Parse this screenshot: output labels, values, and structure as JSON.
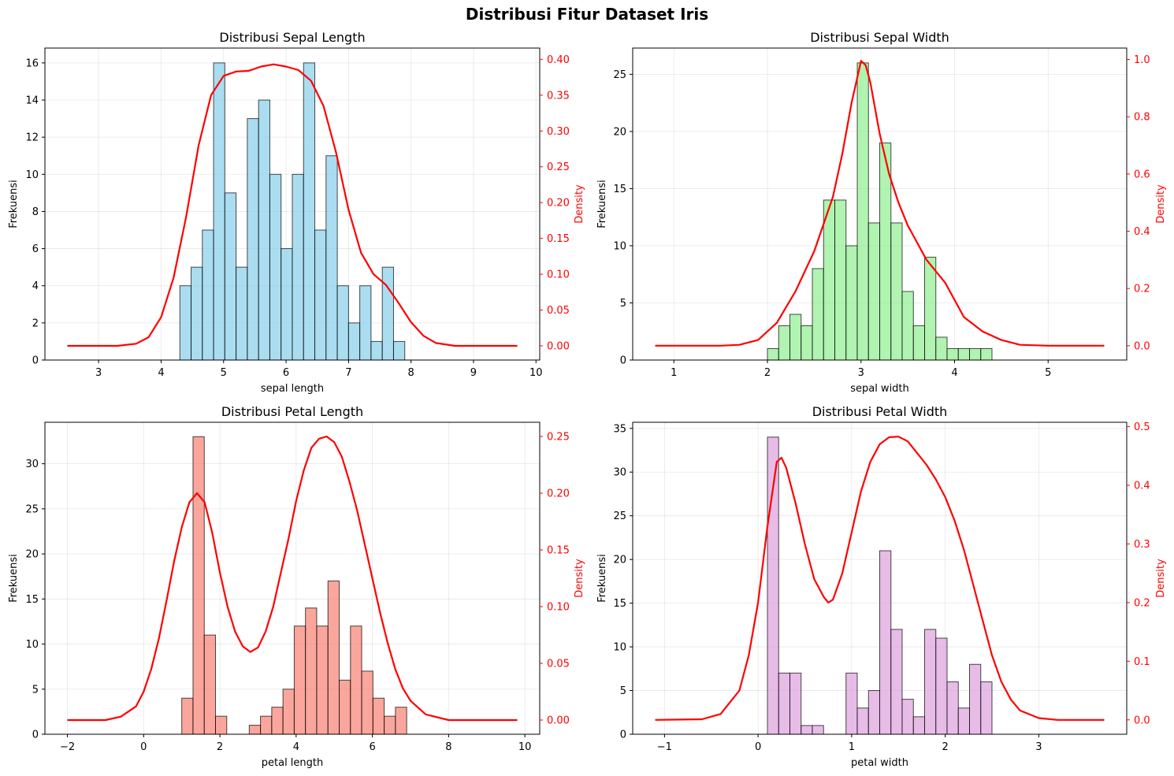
{
  "figure": {
    "title": "Distribusi Fitur Dataset Iris",
    "kde_color": "#ff0000"
  },
  "chart_data": [
    {
      "type": "bar",
      "title": "Distribusi Sepal Length",
      "xlabel": "sepal length",
      "ylabel": "Frekuensi",
      "y2label": "Density",
      "color": "#87ceeb",
      "xlim": [
        2.14,
        10.06
      ],
      "ylim": [
        0,
        16.8
      ],
      "y2lim": [
        -0.0198,
        0.4158
      ],
      "xticks": [
        3,
        4,
        5,
        6,
        7,
        8,
        9,
        10
      ],
      "yticks": [
        0,
        2,
        4,
        6,
        8,
        10,
        12,
        14,
        16
      ],
      "y2ticks": [
        0.0,
        0.05,
        0.1,
        0.15,
        0.2,
        0.25,
        0.3,
        0.35,
        0.4
      ],
      "y2tick_labels": [
        "0.00",
        "0.05",
        "0.10",
        "0.15",
        "0.20",
        "0.25",
        "0.30",
        "0.35",
        "0.40"
      ],
      "bin_start": 4.3,
      "bin_width": 0.18,
      "values": [
        4,
        5,
        7,
        16,
        9,
        5,
        13,
        14,
        10,
        6,
        10,
        16,
        7,
        11,
        4,
        2,
        4,
        1,
        5,
        1
      ],
      "kde": [
        [
          2.5,
          0.0
        ],
        [
          3.3,
          0.0
        ],
        [
          3.6,
          0.003
        ],
        [
          3.8,
          0.012
        ],
        [
          4.0,
          0.04
        ],
        [
          4.2,
          0.095
        ],
        [
          4.4,
          0.18
        ],
        [
          4.6,
          0.28
        ],
        [
          4.8,
          0.35
        ],
        [
          5.0,
          0.377
        ],
        [
          5.2,
          0.383
        ],
        [
          5.4,
          0.384
        ],
        [
          5.6,
          0.39
        ],
        [
          5.8,
          0.393
        ],
        [
          6.0,
          0.39
        ],
        [
          6.2,
          0.385
        ],
        [
          6.4,
          0.37
        ],
        [
          6.6,
          0.335
        ],
        [
          6.8,
          0.27
        ],
        [
          7.0,
          0.19
        ],
        [
          7.2,
          0.13
        ],
        [
          7.4,
          0.1
        ],
        [
          7.6,
          0.085
        ],
        [
          7.8,
          0.06
        ],
        [
          8.0,
          0.033
        ],
        [
          8.2,
          0.014
        ],
        [
          8.4,
          0.004
        ],
        [
          8.7,
          0.0
        ],
        [
          9.7,
          0.0
        ]
      ]
    },
    {
      "type": "bar",
      "title": "Distribusi Sepal Width",
      "xlabel": "sepal width",
      "ylabel": "Frekuensi",
      "y2label": "Density",
      "color": "#90ee90",
      "xlim": [
        0.56,
        5.84
      ],
      "ylim": [
        0,
        27.3
      ],
      "y2lim": [
        -0.05,
        1.04
      ],
      "xticks": [
        1,
        2,
        3,
        4,
        5
      ],
      "yticks": [
        0,
        5,
        10,
        15,
        20,
        25
      ],
      "y2ticks": [
        0.0,
        0.2,
        0.4,
        0.6,
        0.8,
        1.0
      ],
      "y2tick_labels": [
        "0.0",
        "0.2",
        "0.4",
        "0.6",
        "0.8",
        "1.0"
      ],
      "bin_start": 2.0,
      "bin_width": 0.12,
      "values": [
        1,
        3,
        4,
        3,
        8,
        14,
        14,
        10,
        26,
        12,
        19,
        12,
        6,
        3,
        9,
        2,
        1,
        1,
        1,
        1
      ],
      "kde": [
        [
          0.8,
          0.0
        ],
        [
          1.5,
          0.0
        ],
        [
          1.7,
          0.003
        ],
        [
          1.9,
          0.02
        ],
        [
          2.1,
          0.08
        ],
        [
          2.3,
          0.19
        ],
        [
          2.5,
          0.33
        ],
        [
          2.7,
          0.52
        ],
        [
          2.8,
          0.67
        ],
        [
          2.9,
          0.85
        ],
        [
          3.0,
          0.995
        ],
        [
          3.05,
          0.98
        ],
        [
          3.1,
          0.92
        ],
        [
          3.2,
          0.74
        ],
        [
          3.3,
          0.6
        ],
        [
          3.4,
          0.5
        ],
        [
          3.5,
          0.42
        ],
        [
          3.6,
          0.36
        ],
        [
          3.7,
          0.3
        ],
        [
          3.8,
          0.26
        ],
        [
          3.9,
          0.22
        ],
        [
          4.0,
          0.16
        ],
        [
          4.1,
          0.1
        ],
        [
          4.3,
          0.05
        ],
        [
          4.5,
          0.02
        ],
        [
          4.7,
          0.003
        ],
        [
          5.0,
          0.0
        ],
        [
          5.6,
          0.0
        ]
      ]
    },
    {
      "type": "bar",
      "title": "Distribusi Petal Length",
      "xlabel": "petal length",
      "ylabel": "Frekuensi",
      "y2label": "Density",
      "color": "#fa8072",
      "xlim": [
        -2.59,
        10.39
      ],
      "ylim": [
        0,
        34.6
      ],
      "y2lim": [
        -0.0125,
        0.2625
      ],
      "xticks": [
        -2,
        0,
        2,
        4,
        6,
        8,
        10
      ],
      "yticks": [
        0,
        5,
        10,
        15,
        20,
        25,
        30
      ],
      "y2ticks": [
        0.0,
        0.05,
        0.1,
        0.15,
        0.2,
        0.25
      ],
      "y2tick_labels": [
        "0.00",
        "0.05",
        "0.10",
        "0.15",
        "0.20",
        "0.25"
      ],
      "bin_start": 1.0,
      "bin_width": 0.295,
      "values": [
        4,
        33,
        11,
        2,
        0,
        0,
        1,
        2,
        3,
        5,
        12,
        14,
        12,
        17,
        6,
        12,
        7,
        4,
        2,
        3
      ],
      "kde": [
        [
          -2.0,
          0.0
        ],
        [
          -1.0,
          0.0
        ],
        [
          -0.6,
          0.003
        ],
        [
          -0.2,
          0.012
        ],
        [
          0.0,
          0.025
        ],
        [
          0.2,
          0.045
        ],
        [
          0.4,
          0.072
        ],
        [
          0.6,
          0.105
        ],
        [
          0.8,
          0.14
        ],
        [
          1.0,
          0.17
        ],
        [
          1.2,
          0.192
        ],
        [
          1.4,
          0.2
        ],
        [
          1.6,
          0.192
        ],
        [
          1.8,
          0.165
        ],
        [
          2.0,
          0.13
        ],
        [
          2.2,
          0.1
        ],
        [
          2.4,
          0.078
        ],
        [
          2.6,
          0.065
        ],
        [
          2.8,
          0.06
        ],
        [
          3.0,
          0.064
        ],
        [
          3.2,
          0.078
        ],
        [
          3.4,
          0.1
        ],
        [
          3.6,
          0.13
        ],
        [
          3.8,
          0.16
        ],
        [
          4.0,
          0.193
        ],
        [
          4.2,
          0.22
        ],
        [
          4.4,
          0.24
        ],
        [
          4.6,
          0.248
        ],
        [
          4.8,
          0.25
        ],
        [
          5.0,
          0.245
        ],
        [
          5.2,
          0.232
        ],
        [
          5.4,
          0.21
        ],
        [
          5.6,
          0.185
        ],
        [
          5.8,
          0.155
        ],
        [
          6.0,
          0.125
        ],
        [
          6.2,
          0.095
        ],
        [
          6.4,
          0.068
        ],
        [
          6.6,
          0.045
        ],
        [
          6.8,
          0.028
        ],
        [
          7.0,
          0.017
        ],
        [
          7.4,
          0.005
        ],
        [
          8.0,
          0.0
        ],
        [
          9.8,
          0.0
        ]
      ]
    },
    {
      "type": "bar",
      "title": "Distribusi Petal Width",
      "xlabel": "petal width",
      "ylabel": "Frekuensi",
      "y2label": "Density",
      "color": "#dda0dd",
      "xlim": [
        -1.34,
        3.94
      ],
      "ylim": [
        0,
        35.7
      ],
      "y2lim": [
        -0.0245,
        0.5075
      ],
      "xticks": [
        -1,
        0,
        1,
        2,
        3
      ],
      "yticks": [
        0,
        5,
        10,
        15,
        20,
        25,
        30,
        35
      ],
      "y2ticks": [
        0.0,
        0.1,
        0.2,
        0.3,
        0.4,
        0.5
      ],
      "y2tick_labels": [
        "0.0",
        "0.1",
        "0.2",
        "0.3",
        "0.4",
        "0.5"
      ],
      "bin_start": 0.1,
      "bin_width": 0.12,
      "values": [
        34,
        7,
        7,
        1,
        1,
        0,
        0,
        7,
        3,
        5,
        21,
        12,
        4,
        2,
        12,
        11,
        6,
        3,
        8,
        6
      ],
      "kde": [
        [
          -1.1,
          0.0
        ],
        [
          -0.6,
          0.001
        ],
        [
          -0.4,
          0.01
        ],
        [
          -0.2,
          0.05
        ],
        [
          -0.1,
          0.11
        ],
        [
          0.0,
          0.2
        ],
        [
          0.1,
          0.33
        ],
        [
          0.2,
          0.44
        ],
        [
          0.25,
          0.447
        ],
        [
          0.3,
          0.43
        ],
        [
          0.4,
          0.37
        ],
        [
          0.5,
          0.3
        ],
        [
          0.6,
          0.24
        ],
        [
          0.7,
          0.21
        ],
        [
          0.75,
          0.2
        ],
        [
          0.8,
          0.205
        ],
        [
          0.9,
          0.25
        ],
        [
          1.0,
          0.32
        ],
        [
          1.1,
          0.39
        ],
        [
          1.2,
          0.44
        ],
        [
          1.3,
          0.47
        ],
        [
          1.4,
          0.482
        ],
        [
          1.5,
          0.483
        ],
        [
          1.6,
          0.475
        ],
        [
          1.7,
          0.455
        ],
        [
          1.8,
          0.435
        ],
        [
          1.9,
          0.41
        ],
        [
          2.0,
          0.38
        ],
        [
          2.1,
          0.34
        ],
        [
          2.2,
          0.29
        ],
        [
          2.3,
          0.23
        ],
        [
          2.4,
          0.17
        ],
        [
          2.5,
          0.11
        ],
        [
          2.6,
          0.065
        ],
        [
          2.7,
          0.035
        ],
        [
          2.8,
          0.016
        ],
        [
          3.0,
          0.003
        ],
        [
          3.2,
          0.0
        ],
        [
          3.7,
          0.0
        ]
      ]
    }
  ]
}
